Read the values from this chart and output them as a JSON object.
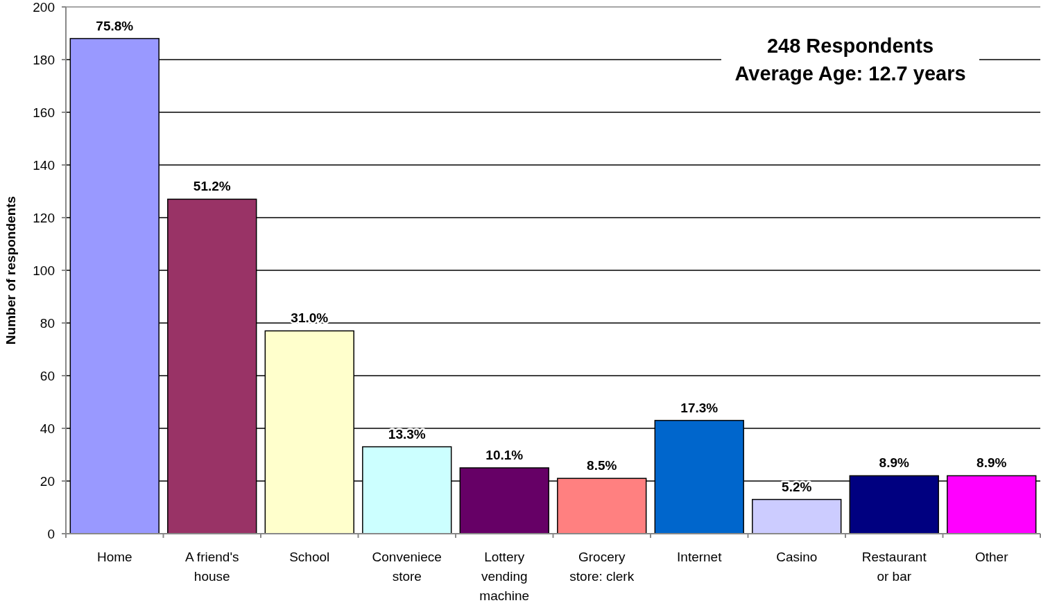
{
  "chart_data": {
    "type": "bar",
    "ylabel": "Number of respondents",
    "categories": [
      "Home",
      "A friend's house",
      "School",
      "Conveniece store",
      "Lottery vending machine",
      "Grocery store: clerk",
      "Internet",
      "Casino",
      "Restaurant or bar",
      "Other"
    ],
    "values": [
      188,
      127,
      77,
      33,
      25,
      21,
      43,
      13,
      22,
      22
    ],
    "colors": [
      "#9999ff",
      "#993366",
      "#ffffcc",
      "#ccffff",
      "#660066",
      "#ff8080",
      "#0066cc",
      "#ccccff",
      "#000080",
      "#ff00ff"
    ],
    "ylim": [
      0,
      200
    ],
    "yticks": [
      0,
      20,
      40,
      60,
      80,
      100,
      120,
      140,
      160,
      180,
      200
    ],
    "grid": "y",
    "annotations": [
      "248 Respondents",
      "Average Age: 12.7 years",
      {
        "text": "75.8%",
        "x": "Home",
        "y": 188
      },
      {
        "text": "51.2%",
        "x": "A friend's house",
        "y": 127
      },
      {
        "text": "31.0%",
        "x": "School",
        "y": 77
      },
      {
        "text": "13.3%",
        "x": "Conveniece store",
        "y": 33
      },
      {
        "text": "10.1%",
        "x": "Lottery vending machine",
        "y": 25
      },
      {
        "text": "8.5%",
        "x": "Grocery store: clerk",
        "y": 21
      },
      {
        "text": "17.3%",
        "x": "Internet",
        "y": 43
      },
      {
        "text": "5.2%",
        "x": "Casino",
        "y": 13
      },
      {
        "text": "8.9%",
        "x": "Restaurant or bar",
        "y": 22
      },
      {
        "text": "8.9%",
        "x": "Other",
        "y": 22
      }
    ]
  }
}
